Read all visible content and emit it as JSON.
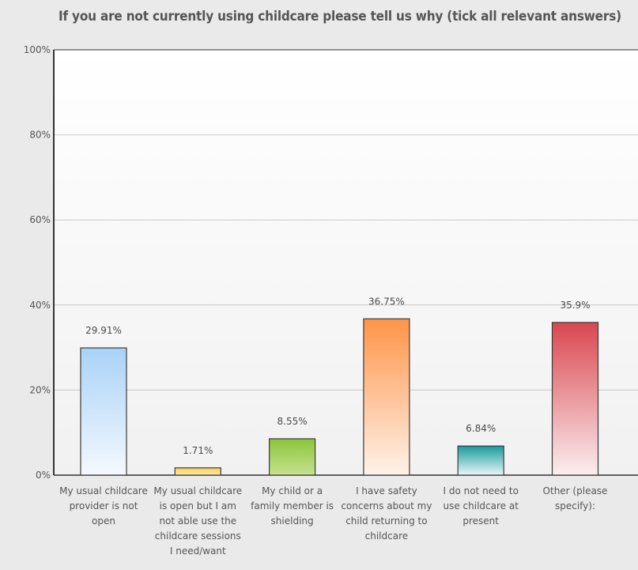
{
  "chart_data": {
    "type": "bar",
    "title": "If you are not currently using childcare please tell us why (tick all relevant answers)",
    "categories": [
      [
        "My usual childcare",
        "provider is not",
        "open"
      ],
      [
        "My usual childcare",
        "is open but I am",
        "not able use the",
        "childcare sessions",
        "I need/want"
      ],
      [
        "My child or a",
        "family member is",
        "shielding"
      ],
      [
        "I have safety",
        "concerns about my",
        "child returning to",
        "childcare"
      ],
      [
        "I do not need to",
        "use childcare at",
        "present"
      ],
      [
        "Other (please",
        "specify):"
      ]
    ],
    "values": [
      29.91,
      1.71,
      8.55,
      36.75,
      6.84,
      35.9
    ],
    "value_labels": [
      "29.91%",
      "1.71%",
      "8.55%",
      "36.75%",
      "6.84%",
      "35.9%"
    ],
    "y_ticks": [
      0,
      20,
      40,
      60,
      80,
      100
    ],
    "y_tick_labels": [
      "0%",
      "20%",
      "40%",
      "60%",
      "80%",
      "100%"
    ],
    "ylim": [
      0,
      100
    ],
    "xlabel": "",
    "ylabel": "",
    "grid": true,
    "bar_colors": [
      {
        "top": "#a9d2f7",
        "bottom": "#f4f9fe",
        "border": "#3a3a3a"
      },
      {
        "top": "#f5d05a",
        "bottom": "#fbe9a8",
        "border": "#3a3a3a"
      },
      {
        "top": "#8cc43a",
        "bottom": "#c6e28f",
        "border": "#3a3a3a"
      },
      {
        "top": "#ff9448",
        "bottom": "#fff2ea",
        "border": "#3a3a3a"
      },
      {
        "top": "#199a9d",
        "bottom": "#e9f7f7",
        "border": "#3a3a3a"
      },
      {
        "top": "#d9474f",
        "bottom": "#fbeef0",
        "border": "#3a3a3a"
      }
    ]
  }
}
